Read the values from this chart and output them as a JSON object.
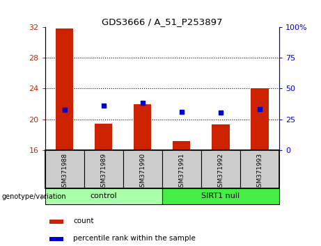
{
  "title": "GDS3666 / A_51_P253897",
  "samples": [
    "GSM371988",
    "GSM371989",
    "GSM371990",
    "GSM371991",
    "GSM371992",
    "GSM371993"
  ],
  "bar_heights": [
    31.8,
    19.4,
    22.0,
    17.2,
    19.3,
    24.0
  ],
  "bar_base": 16,
  "percentile_values": [
    21.2,
    21.8,
    22.1,
    21.0,
    20.9,
    21.3
  ],
  "ylim_left": [
    16,
    32
  ],
  "ylim_right": [
    0,
    100
  ],
  "yticks_left": [
    16,
    20,
    24,
    28,
    32
  ],
  "yticks_right": [
    0,
    25,
    50,
    75,
    100
  ],
  "bar_color": "#CC2200",
  "percentile_color": "#0000CC",
  "control_label": "control",
  "sirt1_label": "SIRT1 null",
  "genotype_label": "genotype/variation",
  "legend_count": "count",
  "legend_percentile": "percentile rank within the sample",
  "control_color": "#AAFFAA",
  "sirt1_color": "#44EE44",
  "left_tick_color": "#CC2200",
  "right_tick_color": "#0000CC",
  "sample_area_color": "#CCCCCC",
  "bar_width": 0.45
}
